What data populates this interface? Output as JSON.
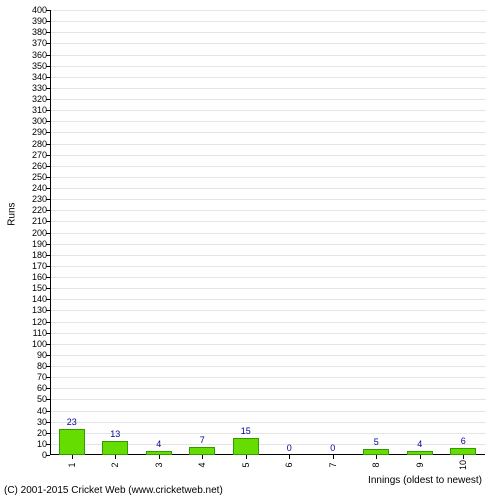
{
  "chart": {
    "type": "bar",
    "ylabel": "Runs",
    "xlabel": "Innings (oldest to newest)",
    "ylim": [
      0,
      400
    ],
    "ytick_step": 10,
    "background_color": "#ffffff",
    "grid_color": "#e5e5e5",
    "axis_color": "#000000",
    "bar_fill_color": "#66dd00",
    "bar_border_color": "#339900",
    "label_color": "#000099",
    "bar_width_ratio": 0.6,
    "categories": [
      "1",
      "2",
      "3",
      "4",
      "5",
      "6",
      "7",
      "8",
      "9",
      "10"
    ],
    "values": [
      23,
      13,
      4,
      7,
      15,
      0,
      0,
      5,
      4,
      6
    ],
    "tick_fontsize": 9,
    "label_fontsize": 10
  },
  "copyright": "(C) 2001-2015 Cricket Web (www.cricketweb.net)"
}
